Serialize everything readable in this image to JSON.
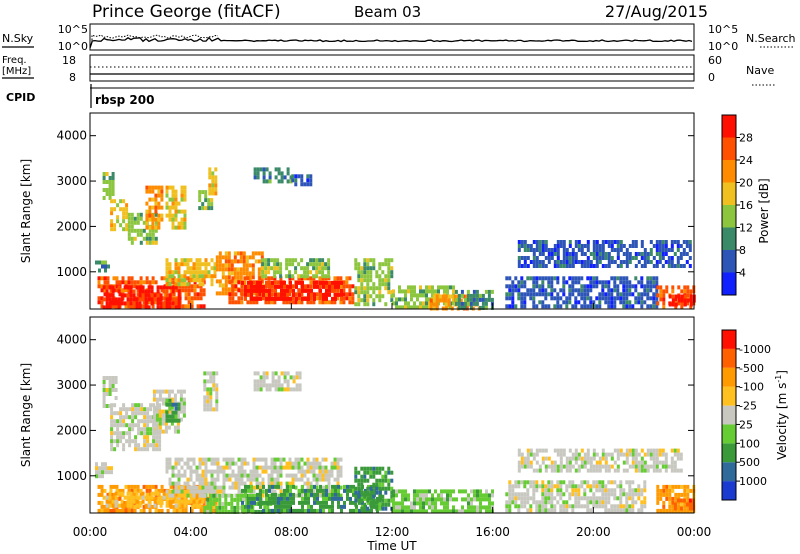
{
  "header": {
    "station": "Prince George (fitACF)",
    "beam": "Beam 03",
    "date": "27/Aug/2015"
  },
  "top_panel": {
    "nsky_label": "N.Sky",
    "nsearch_label": "N.Search",
    "left_ticks": [
      "10^5",
      "10^0"
    ],
    "right_ticks": [
      "10^5",
      "10^0"
    ],
    "freq_label": "Freq.",
    "freq_unit": "[MHz]",
    "freq_ticks": [
      "18",
      "8"
    ],
    "nave_label": "Nave",
    "nave_ticks": [
      "60",
      "0"
    ],
    "cpid_label": "CPID",
    "cpid_value": "rbsp 200"
  },
  "x_axis": {
    "label": "Time UT",
    "ticks": [
      "00:00",
      "04:00",
      "08:00",
      "12:00",
      "16:00",
      "20:00",
      "00:00"
    ]
  },
  "power_panel": {
    "ylabel": "Slant Range [km]",
    "yticks": [
      "1000",
      "2000",
      "3000",
      "4000"
    ],
    "colorbar_label": "Power [dB]",
    "colorbar_ticks": [
      "4",
      "8",
      "12",
      "16",
      "20",
      "24",
      "28"
    ],
    "colors": [
      "#1020ff",
      "#2d55b8",
      "#3a8a6a",
      "#8cc63f",
      "#f0c020",
      "#ff8c00",
      "#ff5000",
      "#ff1000"
    ]
  },
  "velocity_panel": {
    "ylabel": "Slant Range [km]",
    "yticks": [
      "1000",
      "2000",
      "3000",
      "4000"
    ],
    "colorbar_label": "Velocity [m s",
    "colorbar_sup": "-1",
    "colorbar_label_end": "]",
    "colorbar_ticks": [
      "1000",
      "500",
      "100",
      "25",
      "-25",
      "-100",
      "-500",
      "-1000"
    ],
    "colors": [
      "#1a3ad0",
      "#2f6a9a",
      "#3a9a3a",
      "#66cc33",
      "#c8c8c0",
      "#ffc020",
      "#ff9a00",
      "#ff6000",
      "#ff1000"
    ]
  },
  "chart_data": {
    "type": "heatmap",
    "x_range_hours": [
      0,
      24
    ],
    "y_range_km": [
      180,
      4500
    ],
    "power_regions": [
      {
        "t0": 0.2,
        "t1": 0.7,
        "r0": 1050,
        "r1": 1250,
        "level": 2
      },
      {
        "t0": 0.5,
        "t1": 0.9,
        "r0": 2600,
        "r1": 3200,
        "level": 3
      },
      {
        "t0": 0.8,
        "t1": 1.5,
        "r0": 1900,
        "r1": 2600,
        "level": 4
      },
      {
        "t0": 1.5,
        "t1": 2.6,
        "r0": 1600,
        "r1": 2300,
        "level": 3
      },
      {
        "t0": 2.2,
        "t1": 2.9,
        "r0": 2000,
        "r1": 2900,
        "level": 5
      },
      {
        "t0": 3.0,
        "t1": 3.8,
        "r0": 2000,
        "r1": 2900,
        "level": 4
      },
      {
        "t0": 4.3,
        "t1": 4.8,
        "r0": 2400,
        "r1": 2800,
        "level": 3
      },
      {
        "t0": 4.7,
        "t1": 5.0,
        "r0": 2700,
        "r1": 3300,
        "level": 4
      },
      {
        "t0": 6.5,
        "t1": 8.0,
        "r0": 2950,
        "r1": 3300,
        "level": 2
      },
      {
        "t0": 8.0,
        "t1": 8.8,
        "r0": 2900,
        "r1": 3150,
        "level": 1
      },
      {
        "t0": 0.3,
        "t1": 4.5,
        "r0": 200,
        "r1": 900,
        "level": 6
      },
      {
        "t0": 0.5,
        "t1": 3.5,
        "r0": 250,
        "r1": 700,
        "level": 7
      },
      {
        "t0": 3.0,
        "t1": 5.0,
        "r0": 700,
        "r1": 1300,
        "level": 4
      },
      {
        "t0": 5.0,
        "t1": 6.8,
        "r0": 500,
        "r1": 1450,
        "level": 5
      },
      {
        "t0": 5.5,
        "t1": 10.5,
        "r0": 300,
        "r1": 900,
        "level": 6
      },
      {
        "t0": 6.0,
        "t1": 10.0,
        "r0": 400,
        "r1": 800,
        "level": 7
      },
      {
        "t0": 6.8,
        "t1": 9.5,
        "r0": 900,
        "r1": 1300,
        "level": 3
      },
      {
        "t0": 10.5,
        "t1": 12.0,
        "r0": 250,
        "r1": 1300,
        "level": 3
      },
      {
        "t0": 12.0,
        "t1": 14.5,
        "r0": 200,
        "r1": 700,
        "level": 3
      },
      {
        "t0": 13.5,
        "t1": 15.5,
        "r0": 200,
        "r1": 500,
        "level": 5
      },
      {
        "t0": 14.5,
        "t1": 16.0,
        "r0": 200,
        "r1": 600,
        "level": 2
      },
      {
        "t0": 17.0,
        "t1": 23.8,
        "r0": 1100,
        "r1": 1700,
        "level": 1
      },
      {
        "t0": 16.5,
        "t1": 22.5,
        "r0": 200,
        "r1": 900,
        "level": 1
      },
      {
        "t0": 22.5,
        "t1": 24.0,
        "r0": 200,
        "r1": 700,
        "level": 6
      },
      {
        "t0": 23.0,
        "t1": 24.0,
        "r0": 250,
        "r1": 500,
        "level": 7
      }
    ],
    "velocity_regions": [
      {
        "t0": 0.2,
        "t1": 0.8,
        "r0": 1000,
        "r1": 1300,
        "level": 4
      },
      {
        "t0": 0.5,
        "t1": 1.0,
        "r0": 2500,
        "r1": 3200,
        "level": 4
      },
      {
        "t0": 0.8,
        "t1": 2.8,
        "r0": 1600,
        "r1": 2600,
        "level": 4
      },
      {
        "t0": 2.5,
        "t1": 3.8,
        "r0": 2000,
        "r1": 2900,
        "level": 4
      },
      {
        "t0": 3.0,
        "t1": 3.5,
        "r0": 2200,
        "r1": 2700,
        "level": 2
      },
      {
        "t0": 4.5,
        "t1": 5.0,
        "r0": 2500,
        "r1": 3300,
        "level": 4
      },
      {
        "t0": 6.5,
        "t1": 8.3,
        "r0": 2900,
        "r1": 3300,
        "level": 4
      },
      {
        "t0": 0.3,
        "t1": 5.0,
        "r0": 200,
        "r1": 800,
        "level": 6
      },
      {
        "t0": 0.5,
        "t1": 4.5,
        "r0": 300,
        "r1": 650,
        "level": 5
      },
      {
        "t0": 3.0,
        "t1": 10.0,
        "r0": 600,
        "r1": 1400,
        "level": 4
      },
      {
        "t0": 4.5,
        "t1": 7.5,
        "r0": 200,
        "r1": 600,
        "level": 3
      },
      {
        "t0": 6.0,
        "t1": 11.5,
        "r0": 200,
        "r1": 800,
        "level": 2
      },
      {
        "t0": 10.5,
        "t1": 12.0,
        "r0": 300,
        "r1": 1200,
        "level": 2
      },
      {
        "t0": 12.0,
        "t1": 16.0,
        "r0": 200,
        "r1": 700,
        "level": 3
      },
      {
        "t0": 17.0,
        "t1": 23.5,
        "r0": 1100,
        "r1": 1600,
        "level": 4
      },
      {
        "t0": 16.5,
        "t1": 22.0,
        "r0": 200,
        "r1": 900,
        "level": 4
      },
      {
        "t0": 22.5,
        "t1": 24.0,
        "r0": 200,
        "r1": 800,
        "level": 6
      },
      {
        "t0": 23.2,
        "t1": 24.0,
        "r0": 250,
        "r1": 500,
        "level": 7
      }
    ]
  }
}
